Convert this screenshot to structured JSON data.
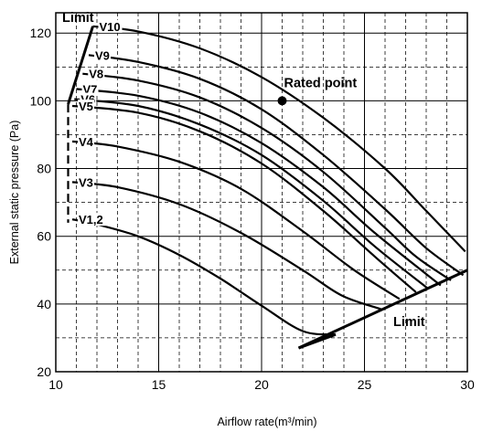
{
  "chart_data": {
    "type": "line",
    "title": "",
    "xlabel": "Airflow rate(m³/min)",
    "ylabel": "External static pressure (Pa)",
    "xlim": [
      10,
      30
    ],
    "ylim": [
      20,
      126
    ],
    "xticks": [
      10,
      15,
      20,
      25,
      30
    ],
    "yticks": [
      20,
      40,
      60,
      80,
      100,
      120
    ],
    "grid": true,
    "series": [
      {
        "name": "V10",
        "x": [
          11.8,
          14,
          17,
          20,
          23,
          26,
          28,
          29.9
        ],
        "y": [
          122,
          120.5,
          115.5,
          107,
          95,
          80,
          67.5,
          55.5
        ]
      },
      {
        "name": "V9",
        "x": [
          11.6,
          14,
          17,
          20,
          23,
          26,
          28,
          29.8
        ],
        "y": [
          113.5,
          111.5,
          106.5,
          97.5,
          84,
          68,
          56.5,
          48.5
        ]
      },
      {
        "name": "V8",
        "x": [
          11.3,
          14,
          17,
          20,
          23,
          26,
          27.5,
          29.2
        ],
        "y": [
          108,
          106,
          101,
          92,
          79,
          62.5,
          54,
          47
        ]
      },
      {
        "name": "V7",
        "x": [
          11.0,
          14,
          17,
          20,
          23,
          25.5,
          28.7
        ],
        "y": [
          103.5,
          101.5,
          96.5,
          87.5,
          74.5,
          61,
          45.5
        ]
      },
      {
        "name": "V6",
        "x": [
          10.9,
          14,
          17,
          20,
          23,
          25.5,
          28.1
        ],
        "y": [
          100.5,
          98.5,
          93,
          84,
          70.5,
          57,
          44.5
        ]
      },
      {
        "name": "V5",
        "x": [
          10.8,
          14,
          17,
          20,
          23,
          25.5,
          27.5
        ],
        "y": [
          98.5,
          96.5,
          91,
          81.5,
          67.5,
          54,
          43.5
        ]
      },
      {
        "name": "V4",
        "x": [
          10.8,
          13,
          16,
          19,
          22,
          24.5,
          26.7
        ],
        "y": [
          88,
          86.5,
          82,
          74,
          61.5,
          50,
          41.5
        ]
      },
      {
        "name": "V3",
        "x": [
          10.8,
          13,
          16,
          19,
          22,
          23.9,
          25.8
        ],
        "y": [
          76,
          74.5,
          69.5,
          61,
          50,
          42.5,
          38.5
        ]
      },
      {
        "name": "V1,2",
        "x": [
          10.8,
          12,
          14,
          16,
          18,
          20,
          22,
          23.6
        ],
        "y": [
          65,
          63.5,
          60,
          54.5,
          47.5,
          39.5,
          32,
          31
        ]
      }
    ],
    "limit_right": {
      "x": [
        21.8,
        30
      ],
      "y": [
        27,
        50
      ]
    },
    "limit_bottom_link": {
      "x": [
        21.8,
        23.6
      ],
      "y": [
        27,
        31
      ]
    },
    "limit_left_solid": {
      "x": [
        10.6,
        11.8
      ],
      "y": [
        99,
        122
      ]
    },
    "limit_left_dashed": {
      "x": [
        10.6,
        10.6
      ],
      "y": [
        99,
        64
      ]
    },
    "rated_point": {
      "x": 21,
      "y": 100,
      "label": "Rated point"
    },
    "limit_labels": [
      "Limit",
      "Limit"
    ]
  }
}
